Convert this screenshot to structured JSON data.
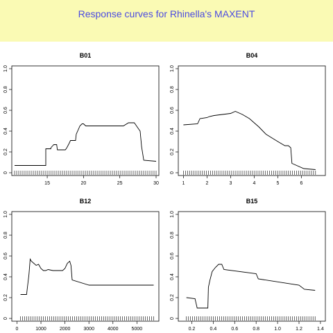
{
  "header": {
    "title": "Response curves for Rhinella's MAXENT",
    "background": "#fafab4",
    "title_color": "#4b4be1"
  },
  "chart_data": [
    {
      "type": "line",
      "title": "B01",
      "xlabel": "",
      "ylabel": "",
      "xlim": [
        10.5,
        30
      ],
      "ylim": [
        0,
        1
      ],
      "x_ticks": [
        "15",
        "20",
        "25",
        "30"
      ],
      "x_tick_values": [
        15,
        20,
        25,
        30
      ],
      "y_ticks": [
        "0",
        "0.2",
        "0.4",
        "0.6",
        "0.8",
        "1.0"
      ],
      "y_tick_values": [
        0,
        0.2,
        0.4,
        0.6,
        0.8,
        1.0
      ],
      "rug_range": [
        10.5,
        30
      ],
      "series": [
        {
          "x": [
            10.5,
            14.8,
            14.8,
            15.5,
            15.5,
            15.9,
            16.0,
            16.3,
            16.4,
            17.2,
            17.5,
            17.7,
            18.0,
            18.2,
            18.9,
            19.0,
            19.5,
            19.8,
            20.0,
            20.3,
            21.0,
            25.5,
            26.2,
            27.0,
            27.2,
            27.5,
            27.8,
            28.0,
            28.3,
            30.0
          ],
          "y": [
            0.07,
            0.07,
            0.23,
            0.23,
            0.24,
            0.27,
            0.27,
            0.27,
            0.22,
            0.22,
            0.22,
            0.24,
            0.28,
            0.31,
            0.31,
            0.37,
            0.45,
            0.47,
            0.47,
            0.45,
            0.45,
            0.45,
            0.48,
            0.48,
            0.46,
            0.43,
            0.4,
            0.25,
            0.12,
            0.11
          ]
        }
      ]
    },
    {
      "type": "line",
      "title": "B04",
      "xlabel": "",
      "ylabel": "",
      "xlim": [
        0.9,
        6.9
      ],
      "ylim": [
        0,
        1
      ],
      "x_ticks": [
        "1",
        "2",
        "3",
        "4",
        "5",
        "6"
      ],
      "x_tick_values": [
        1,
        2,
        3,
        4,
        5,
        6
      ],
      "y_ticks": [
        "0",
        "0.2",
        "0.4",
        "0.6",
        "0.8",
        "1.0"
      ],
      "y_tick_values": [
        0,
        0.2,
        0.4,
        0.6,
        0.8,
        1.0
      ],
      "rug_range": [
        1.0,
        6.6
      ],
      "series": [
        {
          "x": [
            1.0,
            1.6,
            1.7,
            2.0,
            2.1,
            2.3,
            3.0,
            3.2,
            3.5,
            3.8,
            4.0,
            4.2,
            4.5,
            5.0,
            5.3,
            5.45,
            5.55,
            5.6,
            5.7,
            6.1,
            6.6
          ],
          "y": [
            0.46,
            0.47,
            0.52,
            0.53,
            0.54,
            0.55,
            0.57,
            0.59,
            0.56,
            0.52,
            0.48,
            0.44,
            0.37,
            0.3,
            0.26,
            0.26,
            0.24,
            0.09,
            0.08,
            0.04,
            0.03
          ]
        }
      ]
    },
    {
      "type": "line",
      "title": "B12",
      "xlabel": "",
      "ylabel": "",
      "xlim": [
        -100,
        5800
      ],
      "ylim": [
        0,
        1
      ],
      "x_ticks": [
        "0",
        "1000",
        "2000",
        "3000",
        "4000",
        "5000"
      ],
      "x_tick_values": [
        0,
        1000,
        2000,
        3000,
        4000,
        5000
      ],
      "y_ticks": [
        "0",
        "0.2",
        "0.4",
        "0.6",
        "0.8",
        "1.0"
      ],
      "y_tick_values": [
        0,
        0.2,
        0.4,
        0.6,
        0.8,
        1.0
      ],
      "rug_range": [
        150,
        5700
      ],
      "series": [
        {
          "x": [
            150,
            400,
            500,
            550,
            600,
            700,
            800,
            900,
            1000,
            1100,
            1200,
            1300,
            1500,
            1700,
            1900,
            2000,
            2100,
            2200,
            2250,
            2300,
            3000,
            5700
          ],
          "y": [
            0.23,
            0.23,
            0.42,
            0.57,
            0.55,
            0.53,
            0.51,
            0.52,
            0.48,
            0.46,
            0.46,
            0.47,
            0.46,
            0.46,
            0.46,
            0.48,
            0.53,
            0.55,
            0.51,
            0.37,
            0.32,
            0.32
          ]
        }
      ]
    },
    {
      "type": "line",
      "title": "B15",
      "xlabel": "",
      "ylabel": "",
      "xlim": [
        0.1,
        1.42
      ],
      "ylim": [
        0,
        1
      ],
      "x_ticks": [
        "0.2",
        "0.4",
        "0.6",
        "0.8",
        "1.0",
        "1.2",
        "1.4"
      ],
      "x_tick_values": [
        0.2,
        0.4,
        0.6,
        0.8,
        1.0,
        1.2,
        1.4
      ],
      "y_ticks": [
        "0",
        "0.2",
        "0.4",
        "0.6",
        "0.8",
        "1.0"
      ],
      "y_tick_values": [
        0,
        0.2,
        0.4,
        0.6,
        0.8,
        1.0
      ],
      "rug_range": [
        0.15,
        1.35
      ],
      "series": [
        {
          "x": [
            0.15,
            0.23,
            0.25,
            0.35,
            0.355,
            0.37,
            0.39,
            0.42,
            0.45,
            0.48,
            0.5,
            0.8,
            0.82,
            1.2,
            1.25,
            1.35
          ],
          "y": [
            0.2,
            0.19,
            0.1,
            0.1,
            0.3,
            0.37,
            0.45,
            0.49,
            0.52,
            0.52,
            0.47,
            0.43,
            0.38,
            0.32,
            0.28,
            0.27
          ]
        }
      ]
    }
  ]
}
